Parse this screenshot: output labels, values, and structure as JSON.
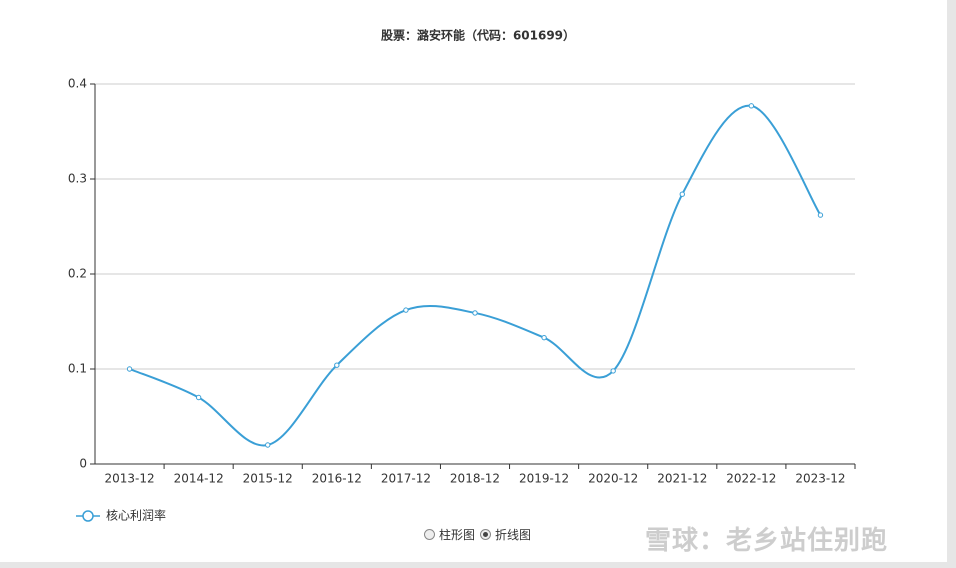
{
  "chart_data": {
    "type": "line",
    "title": "股票：潞安环能（代码：601699）",
    "categories": [
      "2013-12",
      "2014-12",
      "2015-12",
      "2016-12",
      "2017-12",
      "2018-12",
      "2019-12",
      "2020-12",
      "2021-12",
      "2022-12",
      "2023-12"
    ],
    "series": [
      {
        "name": "核心利润率",
        "color": "#3a9fd6",
        "values": [
          0.1,
          0.07,
          0.02,
          0.104,
          0.162,
          0.159,
          0.133,
          0.098,
          0.284,
          0.377,
          0.262
        ]
      }
    ],
    "ylim": [
      0,
      0.4
    ],
    "yticks": [
      0,
      0.1,
      0.2,
      0.3,
      0.4
    ],
    "grid": true,
    "legend": "bottom-left"
  },
  "controls": {
    "options": [
      "柱形图",
      "折线图"
    ],
    "selected": 1
  },
  "watermark": "雪球：老乡站住别跑"
}
